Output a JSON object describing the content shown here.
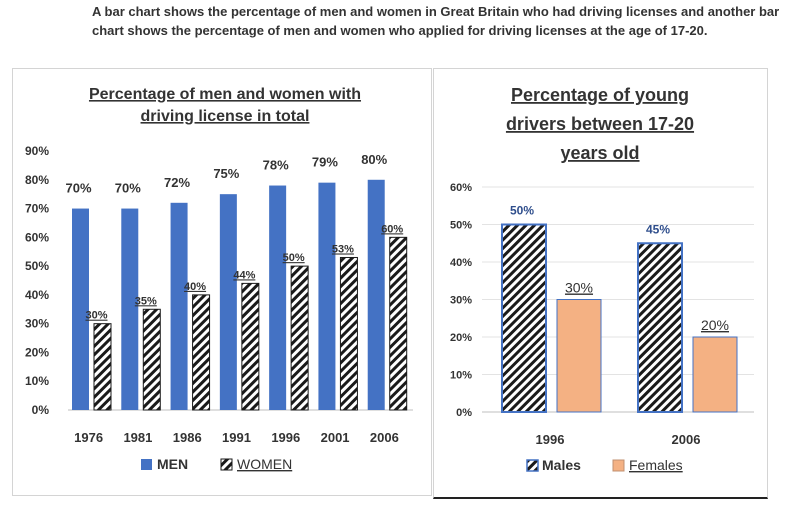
{
  "description": "A bar chart shows the percentage of men and women in Great Britain who had driving licenses and another bar chart shows the percentage of men and women who applied for driving licenses at the age of 17-20.",
  "chart_data": [
    {
      "type": "bar",
      "title_lines": [
        "Percentage of men and women with",
        "driving license in total"
      ],
      "categories": [
        "1976",
        "1981",
        "1986",
        "1991",
        "1996",
        "2001",
        "2006"
      ],
      "series": [
        {
          "name": "MEN",
          "values": [
            70,
            70,
            72,
            75,
            78,
            79,
            80
          ],
          "labels": [
            "70%",
            "70%",
            "72%",
            "75%",
            "78%",
            "79%",
            "80%"
          ],
          "color": "#4472c4",
          "pattern": "solid"
        },
        {
          "name": "WOMEN",
          "values": [
            30,
            35,
            40,
            44,
            50,
            53,
            60
          ],
          "labels": [
            "30%",
            "35%",
            "40%",
            "44%",
            "50%",
            "53%",
            "60%"
          ],
          "color": "#1a1a1a",
          "pattern": "diagonal-stripes"
        }
      ],
      "y_ticks": [
        "0%",
        "10%",
        "20%",
        "30%",
        "40%",
        "50%",
        "60%",
        "70%",
        "80%",
        "90%"
      ],
      "ylim": [
        0,
        90
      ],
      "grid": false,
      "legend_position": "bottom"
    },
    {
      "type": "bar",
      "title_lines": [
        "Percentage of young",
        "drivers between 17-20",
        "years old"
      ],
      "categories": [
        "1996",
        "2006"
      ],
      "series": [
        {
          "name": "Males",
          "values": [
            50,
            45
          ],
          "labels": [
            "50%",
            "45%"
          ],
          "color": "#1a1a1a",
          "border": "#4472c4",
          "pattern": "diagonal-stripes"
        },
        {
          "name": "Females",
          "values": [
            30,
            20
          ],
          "labels": [
            "30%",
            "20%"
          ],
          "color": "#f4b183",
          "border": "#4472c4",
          "pattern": "solid"
        }
      ],
      "y_ticks": [
        "0%",
        "10%",
        "20%",
        "30%",
        "40%",
        "50%",
        "60%"
      ],
      "ylim": [
        0,
        60
      ],
      "grid": true,
      "legend_position": "bottom"
    }
  ]
}
